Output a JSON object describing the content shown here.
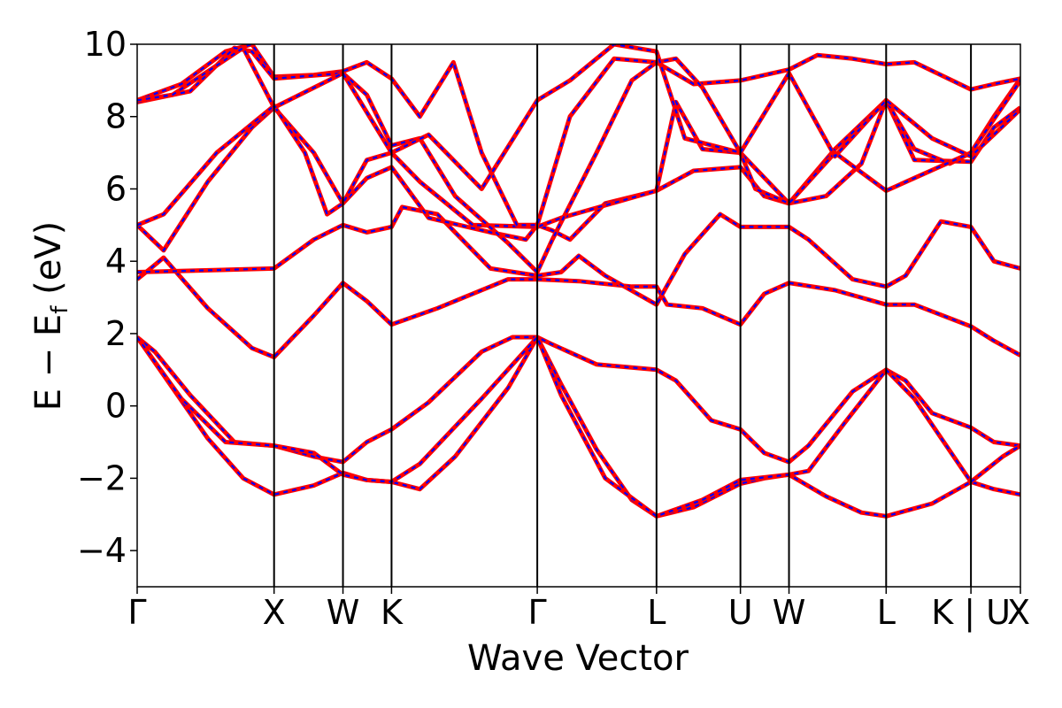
{
  "colors": {
    "series_a": "#ff0000",
    "series_b": "#0000ff",
    "axis": "#000000",
    "background": "#ffffff"
  },
  "chart_data": {
    "type": "line",
    "title": "",
    "xlabel": "Wave Vector",
    "ylabel_main": "E − E",
    "ylabel_sub": "f",
    "ylabel_unit": "(eV)",
    "ylim": [
      -5,
      10
    ],
    "xlim": [
      0,
      1000
    ],
    "yticks": [
      -4,
      -2,
      0,
      2,
      4,
      6,
      8,
      10
    ],
    "ytick_labels": [
      "−4",
      "−2",
      "0",
      "2",
      "4",
      "6",
      "8",
      "10"
    ],
    "kpoints": [
      {
        "label": "Γ",
        "x": 0
      },
      {
        "label": "X",
        "x": 155
      },
      {
        "label": "W",
        "x": 233
      },
      {
        "label": "K",
        "x": 288
      },
      {
        "label": "Γ",
        "x": 453
      },
      {
        "label": "L",
        "x": 588
      },
      {
        "label": "U",
        "x": 683
      },
      {
        "label": "W",
        "x": 738
      },
      {
        "label": "L",
        "x": 848
      },
      {
        "label": "K | U",
        "x": 944
      },
      {
        "label": "X",
        "x": 1000
      }
    ],
    "grid": false,
    "legend": "none",
    "series": [
      {
        "points": [
          [
            0,
            1.9
          ],
          [
            20,
            1.5
          ],
          [
            60,
            0.3
          ],
          [
            110,
            -1.0
          ],
          [
            155,
            -1.1
          ],
          [
            200,
            -1.4
          ],
          [
            233,
            -1.55
          ],
          [
            260,
            -1.0
          ],
          [
            288,
            -0.65
          ],
          [
            330,
            0.1
          ],
          [
            390,
            1.5
          ],
          [
            425,
            1.9
          ],
          [
            453,
            1.9
          ],
          [
            470,
            1.7
          ],
          [
            520,
            1.15
          ],
          [
            588,
            1.0
          ],
          [
            610,
            0.7
          ],
          [
            650,
            -0.4
          ],
          [
            683,
            -0.65
          ],
          [
            710,
            -1.3
          ],
          [
            738,
            -1.55
          ],
          [
            760,
            -1.1
          ],
          [
            810,
            0.4
          ],
          [
            848,
            1.0
          ],
          [
            870,
            0.7
          ],
          [
            900,
            -0.2
          ],
          [
            944,
            -0.6
          ],
          [
            970,
            -1.0
          ],
          [
            1000,
            -1.1
          ]
        ]
      },
      {
        "points": [
          [
            0,
            1.9
          ],
          [
            40,
            0.5
          ],
          [
            80,
            -0.9
          ],
          [
            120,
            -2.0
          ],
          [
            155,
            -2.45
          ],
          [
            200,
            -2.2
          ],
          [
            233,
            -1.85
          ],
          [
            260,
            -2.05
          ],
          [
            288,
            -2.1
          ],
          [
            320,
            -2.3
          ],
          [
            360,
            -1.4
          ],
          [
            420,
            0.5
          ],
          [
            453,
            1.9
          ],
          [
            480,
            0.6
          ],
          [
            520,
            -1.2
          ],
          [
            560,
            -2.6
          ],
          [
            588,
            -3.05
          ],
          [
            630,
            -2.8
          ],
          [
            683,
            -2.15
          ],
          [
            710,
            -2.0
          ],
          [
            738,
            -1.9
          ],
          [
            780,
            -2.5
          ],
          [
            820,
            -2.95
          ],
          [
            848,
            -3.05
          ],
          [
            900,
            -2.7
          ],
          [
            944,
            -2.1
          ],
          [
            970,
            -2.3
          ],
          [
            1000,
            -2.45
          ]
        ]
      },
      {
        "points": [
          [
            0,
            1.9
          ],
          [
            50,
            0.2
          ],
          [
            100,
            -1.0
          ],
          [
            155,
            -1.1
          ],
          [
            200,
            -1.3
          ],
          [
            233,
            -1.9
          ],
          [
            260,
            -2.05
          ],
          [
            288,
            -2.1
          ],
          [
            320,
            -1.6
          ],
          [
            390,
            0.2
          ],
          [
            453,
            1.9
          ],
          [
            480,
            0.3
          ],
          [
            530,
            -2.0
          ],
          [
            588,
            -3.05
          ],
          [
            640,
            -2.6
          ],
          [
            683,
            -2.05
          ],
          [
            738,
            -1.9
          ],
          [
            760,
            -1.8
          ],
          [
            800,
            -0.5
          ],
          [
            848,
            1.0
          ],
          [
            880,
            0.2
          ],
          [
            944,
            -2.1
          ],
          [
            980,
            -1.4
          ],
          [
            1000,
            -1.1
          ]
        ]
      },
      {
        "points": [
          [
            0,
            3.5
          ],
          [
            15,
            3.8
          ],
          [
            30,
            4.1
          ],
          [
            80,
            2.7
          ],
          [
            130,
            1.6
          ],
          [
            155,
            1.35
          ],
          [
            200,
            2.5
          ],
          [
            233,
            3.4
          ],
          [
            260,
            2.9
          ],
          [
            288,
            2.25
          ],
          [
            340,
            2.7
          ],
          [
            420,
            3.5
          ],
          [
            453,
            3.5
          ],
          [
            500,
            3.45
          ],
          [
            560,
            3.3
          ],
          [
            588,
            3.3
          ],
          [
            600,
            2.8
          ],
          [
            640,
            2.7
          ],
          [
            683,
            2.25
          ],
          [
            710,
            3.1
          ],
          [
            738,
            3.4
          ],
          [
            790,
            3.2
          ],
          [
            848,
            2.8
          ],
          [
            880,
            2.8
          ],
          [
            944,
            2.2
          ],
          [
            970,
            1.8
          ],
          [
            1000,
            1.4
          ]
        ]
      },
      {
        "points": [
          [
            0,
            3.7
          ],
          [
            155,
            3.8
          ],
          [
            200,
            4.6
          ],
          [
            233,
            5.0
          ],
          [
            260,
            4.8
          ],
          [
            288,
            4.95
          ],
          [
            300,
            5.5
          ],
          [
            340,
            5.3
          ],
          [
            400,
            3.8
          ],
          [
            453,
            3.6
          ],
          [
            480,
            3.7
          ],
          [
            500,
            4.15
          ],
          [
            530,
            3.6
          ],
          [
            588,
            2.8
          ],
          [
            620,
            4.2
          ],
          [
            660,
            5.3
          ],
          [
            683,
            4.95
          ],
          [
            738,
            4.95
          ],
          [
            760,
            4.6
          ],
          [
            810,
            3.5
          ],
          [
            848,
            3.3
          ],
          [
            870,
            3.6
          ],
          [
            910,
            5.1
          ],
          [
            944,
            4.95
          ],
          [
            970,
            4.0
          ],
          [
            1000,
            3.8
          ]
        ]
      },
      {
        "points": [
          [
            0,
            5.0
          ],
          [
            30,
            4.3
          ],
          [
            80,
            6.2
          ],
          [
            130,
            7.7
          ],
          [
            155,
            8.25
          ],
          [
            200,
            7.0
          ],
          [
            233,
            5.6
          ],
          [
            260,
            6.3
          ],
          [
            288,
            6.6
          ],
          [
            330,
            5.2
          ],
          [
            400,
            4.8
          ],
          [
            440,
            4.6
          ],
          [
            453,
            5.0
          ],
          [
            470,
            4.85
          ],
          [
            490,
            4.6
          ],
          [
            530,
            5.6
          ],
          [
            588,
            5.95
          ],
          [
            630,
            6.5
          ],
          [
            683,
            6.6
          ],
          [
            710,
            5.8
          ],
          [
            738,
            5.6
          ],
          [
            780,
            5.8
          ],
          [
            820,
            6.7
          ],
          [
            848,
            8.45
          ],
          [
            880,
            6.8
          ],
          [
            944,
            6.75
          ],
          [
            970,
            7.7
          ],
          [
            1000,
            8.25
          ]
        ]
      },
      {
        "points": [
          [
            0,
            5.0
          ],
          [
            30,
            5.3
          ],
          [
            90,
            7.0
          ],
          [
            155,
            8.3
          ],
          [
            190,
            7.0
          ],
          [
            215,
            5.3
          ],
          [
            233,
            5.6
          ],
          [
            260,
            6.8
          ],
          [
            288,
            7.0
          ],
          [
            320,
            6.2
          ],
          [
            380,
            5.0
          ],
          [
            453,
            4.95
          ],
          [
            480,
            5.2
          ],
          [
            588,
            5.95
          ],
          [
            610,
            8.4
          ],
          [
            640,
            7.1
          ],
          [
            683,
            7.0
          ],
          [
            738,
            5.6
          ],
          [
            790,
            7.1
          ],
          [
            848,
            8.45
          ],
          [
            880,
            7.1
          ],
          [
            920,
            6.7
          ],
          [
            944,
            7.0
          ],
          [
            970,
            8.0
          ],
          [
            1000,
            9.05
          ]
        ]
      },
      {
        "points": [
          [
            0,
            8.45
          ],
          [
            50,
            8.9
          ],
          [
            100,
            9.8
          ],
          [
            130,
            10.0
          ],
          [
            155,
            9.1
          ],
          [
            200,
            9.15
          ],
          [
            233,
            9.25
          ],
          [
            260,
            9.5
          ],
          [
            288,
            9.05
          ],
          [
            320,
            8.0
          ],
          [
            358,
            9.5
          ],
          [
            390,
            7.0
          ],
          [
            430,
            5.0
          ],
          [
            453,
            5.0
          ],
          [
            490,
            8.0
          ],
          [
            540,
            9.6
          ],
          [
            588,
            9.5
          ],
          [
            630,
            8.9
          ],
          [
            683,
            9.0
          ],
          [
            738,
            9.3
          ],
          [
            770,
            9.7
          ],
          [
            810,
            9.6
          ],
          [
            848,
            9.45
          ],
          [
            880,
            9.5
          ],
          [
            944,
            8.75
          ],
          [
            970,
            8.9
          ],
          [
            1000,
            9.05
          ]
        ]
      },
      {
        "points": [
          [
            0,
            8.4
          ],
          [
            60,
            8.7
          ],
          [
            110,
            9.9
          ],
          [
            130,
            9.8
          ],
          [
            155,
            9.05
          ],
          [
            233,
            9.2
          ],
          [
            260,
            8.6
          ],
          [
            288,
            7.2
          ],
          [
            320,
            7.4
          ],
          [
            360,
            5.8
          ],
          [
            420,
            4.5
          ],
          [
            453,
            3.7
          ],
          [
            470,
            4.6
          ],
          [
            520,
            7.0
          ],
          [
            560,
            9.0
          ],
          [
            588,
            9.5
          ],
          [
            610,
            9.6
          ],
          [
            640,
            8.8
          ],
          [
            683,
            7.0
          ],
          [
            700,
            6.0
          ],
          [
            738,
            5.6
          ],
          [
            790,
            7.0
          ],
          [
            848,
            5.95
          ],
          [
            880,
            6.3
          ],
          [
            944,
            7.0
          ],
          [
            1000,
            9.0
          ]
        ]
      },
      {
        "points": [
          [
            0,
            8.45
          ],
          [
            40,
            8.6
          ],
          [
            120,
            9.9
          ],
          [
            155,
            8.25
          ],
          [
            233,
            9.2
          ],
          [
            288,
            7.0
          ],
          [
            330,
            7.5
          ],
          [
            390,
            6.0
          ],
          [
            453,
            8.45
          ],
          [
            490,
            9.0
          ],
          [
            540,
            10.0
          ],
          [
            588,
            9.8
          ],
          [
            620,
            7.4
          ],
          [
            683,
            7.0
          ],
          [
            738,
            9.2
          ],
          [
            790,
            6.9
          ],
          [
            848,
            8.45
          ],
          [
            900,
            7.4
          ],
          [
            944,
            6.9
          ],
          [
            1000,
            8.2
          ]
        ]
      }
    ]
  }
}
